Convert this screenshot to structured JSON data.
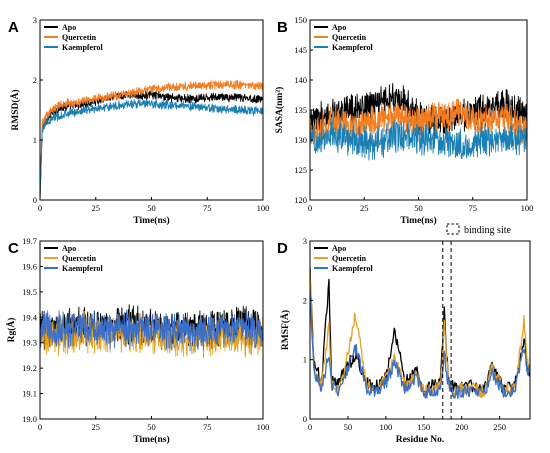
{
  "chart_data": [
    {
      "panel": "A",
      "type": "line",
      "xlabel": "Time(ns)",
      "ylabel": "RMSD(Å)",
      "xlim": [
        0,
        100
      ],
      "ylim": [
        0,
        3
      ],
      "xticks": [
        "0",
        "25",
        "50",
        "75",
        "100"
      ],
      "yticks": [
        "0",
        "1",
        "2",
        "3"
      ],
      "legend_position": "top-left",
      "series": [
        {
          "name": "Apo",
          "color": "#000000",
          "x": [
            0,
            1,
            5,
            10,
            20,
            30,
            40,
            50,
            60,
            70,
            80,
            90,
            100
          ],
          "y": [
            0.0,
            1.2,
            1.45,
            1.55,
            1.6,
            1.7,
            1.75,
            1.75,
            1.7,
            1.68,
            1.72,
            1.7,
            1.68
          ]
        },
        {
          "name": "Quercetin",
          "color": "#f47d20",
          "x": [
            0,
            1,
            5,
            10,
            20,
            30,
            40,
            50,
            60,
            70,
            80,
            90,
            100
          ],
          "y": [
            0.0,
            1.3,
            1.5,
            1.6,
            1.65,
            1.72,
            1.78,
            1.85,
            1.88,
            1.9,
            1.92,
            1.92,
            1.9
          ]
        },
        {
          "name": "Kaempferol",
          "color": "#1a7fb4",
          "x": [
            0,
            1,
            5,
            10,
            20,
            30,
            40,
            50,
            60,
            70,
            80,
            90,
            100
          ],
          "y": [
            0.0,
            1.2,
            1.35,
            1.42,
            1.5,
            1.55,
            1.6,
            1.6,
            1.58,
            1.55,
            1.52,
            1.5,
            1.48
          ]
        }
      ]
    },
    {
      "panel": "B",
      "type": "line",
      "xlabel": "Time(ns)",
      "ylabel": "SASA(nm²)",
      "xlim": [
        0,
        100
      ],
      "ylim": [
        120,
        150
      ],
      "xticks": [
        "0",
        "25",
        "50",
        "75",
        "100"
      ],
      "yticks": [
        "120",
        "125",
        "130",
        "135",
        "140",
        "145",
        "150"
      ],
      "legend_position": "top-left",
      "series": [
        {
          "name": "Apo",
          "color": "#000000",
          "x": [
            0,
            10,
            20,
            30,
            40,
            50,
            60,
            70,
            80,
            90,
            100
          ],
          "y": [
            133,
            134,
            135,
            136,
            137,
            134,
            133,
            134,
            135,
            136,
            134
          ]
        },
        {
          "name": "Quercetin",
          "color": "#f47d20",
          "x": [
            0,
            10,
            20,
            30,
            40,
            50,
            60,
            70,
            80,
            90,
            100
          ],
          "y": [
            131,
            133,
            132,
            133,
            134,
            133,
            134,
            134,
            133,
            134,
            131
          ]
        },
        {
          "name": "Kaempferol",
          "color": "#1a7fb4",
          "x": [
            0,
            10,
            20,
            30,
            40,
            50,
            60,
            70,
            80,
            90,
            100
          ],
          "y": [
            130,
            131,
            130,
            129,
            131,
            130,
            130,
            129,
            130,
            130,
            130
          ]
        }
      ]
    },
    {
      "panel": "C",
      "type": "line",
      "xlabel": "Time(ns)",
      "ylabel": "Rg(Å)",
      "xlim": [
        0,
        100
      ],
      "ylim": [
        19.0,
        19.7
      ],
      "xticks": [
        "0",
        "25",
        "50",
        "75",
        "100"
      ],
      "yticks": [
        "19.0",
        "19.1",
        "19.2",
        "19.3",
        "19.4",
        "19.5",
        "19.6",
        "19.7"
      ],
      "legend_position": "top-left",
      "series": [
        {
          "name": "Apo",
          "color": "#000000",
          "x": [
            0,
            10,
            20,
            30,
            40,
            50,
            60,
            70,
            80,
            90,
            100
          ],
          "y": [
            19.35,
            19.36,
            19.37,
            19.36,
            19.37,
            19.36,
            19.35,
            19.36,
            19.36,
            19.37,
            19.36
          ]
        },
        {
          "name": "Quercetin",
          "color": "#e8a420",
          "x": [
            0,
            10,
            20,
            30,
            40,
            50,
            60,
            70,
            80,
            90,
            100
          ],
          "y": [
            19.33,
            19.32,
            19.34,
            19.33,
            19.34,
            19.33,
            19.32,
            19.31,
            19.33,
            19.32,
            19.33
          ]
        },
        {
          "name": "Kaempferol",
          "color": "#3b6fc9",
          "x": [
            0,
            10,
            20,
            30,
            40,
            50,
            60,
            70,
            80,
            90,
            100
          ],
          "y": [
            19.35,
            19.35,
            19.36,
            19.35,
            19.35,
            19.36,
            19.35,
            19.34,
            19.35,
            19.36,
            19.35
          ]
        }
      ]
    },
    {
      "panel": "D",
      "type": "line",
      "xlabel": "Residue No.",
      "ylabel": "RMSF(Å)",
      "xlim": [
        0,
        290
      ],
      "ylim": [
        0,
        3
      ],
      "xticks": [
        "0",
        "50",
        "100",
        "150",
        "200",
        "250"
      ],
      "yticks": [
        "0",
        "1",
        "2",
        "3"
      ],
      "legend_position": "top-left",
      "binding_site_label": "binding site",
      "binding_site_x": [
        175,
        186
      ],
      "series": [
        {
          "name": "Apo",
          "color": "#000000",
          "x": [
            0,
            5,
            15,
            25,
            28,
            35,
            45,
            60,
            75,
            90,
            100,
            112,
            125,
            140,
            150,
            160,
            172,
            177,
            182,
            190,
            200,
            215,
            230,
            240,
            255,
            270,
            282,
            287
          ],
          "y": [
            2.5,
            1.0,
            0.6,
            2.35,
            0.7,
            0.55,
            0.8,
            1.1,
            0.6,
            0.55,
            0.7,
            1.5,
            0.6,
            0.8,
            0.5,
            0.55,
            0.6,
            1.85,
            0.7,
            0.5,
            0.55,
            0.55,
            0.5,
            0.9,
            0.5,
            0.55,
            1.35,
            0.8
          ]
        },
        {
          "name": "Quercetin",
          "color": "#e8a420",
          "x": [
            0,
            5,
            15,
            25,
            28,
            35,
            45,
            60,
            75,
            90,
            100,
            112,
            125,
            140,
            150,
            160,
            172,
            177,
            182,
            190,
            200,
            215,
            230,
            240,
            255,
            270,
            282,
            287
          ],
          "y": [
            2.4,
            0.9,
            0.55,
            1.55,
            0.65,
            0.5,
            0.75,
            1.75,
            0.55,
            0.5,
            0.65,
            1.05,
            0.55,
            0.75,
            0.45,
            0.5,
            0.55,
            1.6,
            0.65,
            0.45,
            0.5,
            0.5,
            0.45,
            0.85,
            0.5,
            0.5,
            1.65,
            0.9
          ]
        },
        {
          "name": "Kaempferol",
          "color": "#3b6fc9",
          "x": [
            0,
            5,
            15,
            25,
            28,
            35,
            45,
            60,
            75,
            90,
            100,
            112,
            125,
            140,
            150,
            160,
            172,
            177,
            182,
            190,
            200,
            215,
            230,
            240,
            255,
            270,
            282,
            287
          ],
          "y": [
            2.1,
            0.85,
            0.5,
            1.1,
            0.6,
            0.45,
            0.7,
            1.2,
            0.5,
            0.45,
            0.6,
            0.95,
            0.5,
            0.7,
            0.45,
            0.45,
            0.5,
            1.05,
            0.6,
            0.45,
            0.45,
            0.5,
            0.45,
            0.8,
            0.45,
            0.5,
            1.2,
            0.8
          ]
        }
      ]
    }
  ]
}
